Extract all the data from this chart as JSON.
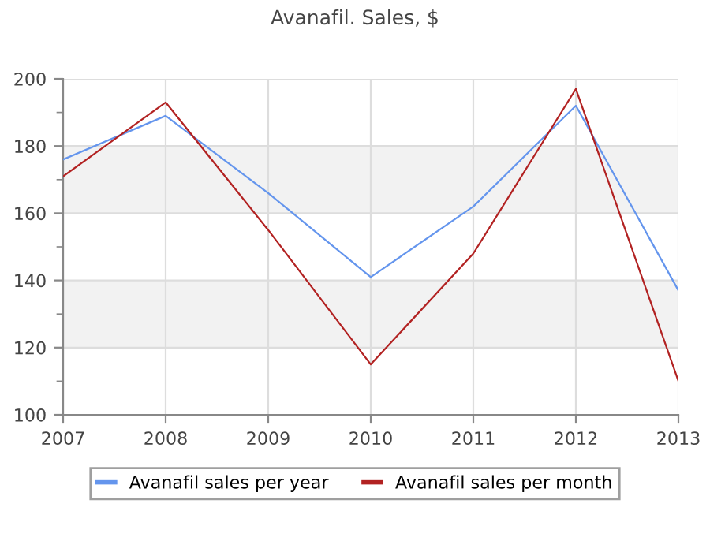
{
  "chart_data": {
    "type": "line",
    "title": "Avanafil. Sales, $",
    "x": [
      2007,
      2008,
      2009,
      2010,
      2011,
      2012,
      2013
    ],
    "series": [
      {
        "name": "Avanafil sales per year",
        "color": "#6495ed",
        "values": [
          176,
          189,
          166,
          141,
          162,
          192,
          137
        ]
      },
      {
        "name": "Avanafil sales per month",
        "color": "#b22222",
        "values": [
          171,
          193,
          155,
          115,
          148,
          197,
          110
        ]
      }
    ],
    "xlim": [
      2007,
      2013
    ],
    "xticks": [
      2007,
      2008,
      2009,
      2010,
      2011,
      2012,
      2013
    ],
    "ylim": [
      100,
      200
    ],
    "yticks": [
      100,
      120,
      140,
      160,
      180,
      200
    ],
    "bands": [
      {
        "axis": "y",
        "from": 120,
        "to": 140,
        "color": "#f2f2f2"
      },
      {
        "axis": "y",
        "from": 160,
        "to": 180,
        "color": "#f2f2f2"
      }
    ],
    "grid": true,
    "legend": "bottom",
    "marker": "none",
    "line_style": "solid"
  }
}
